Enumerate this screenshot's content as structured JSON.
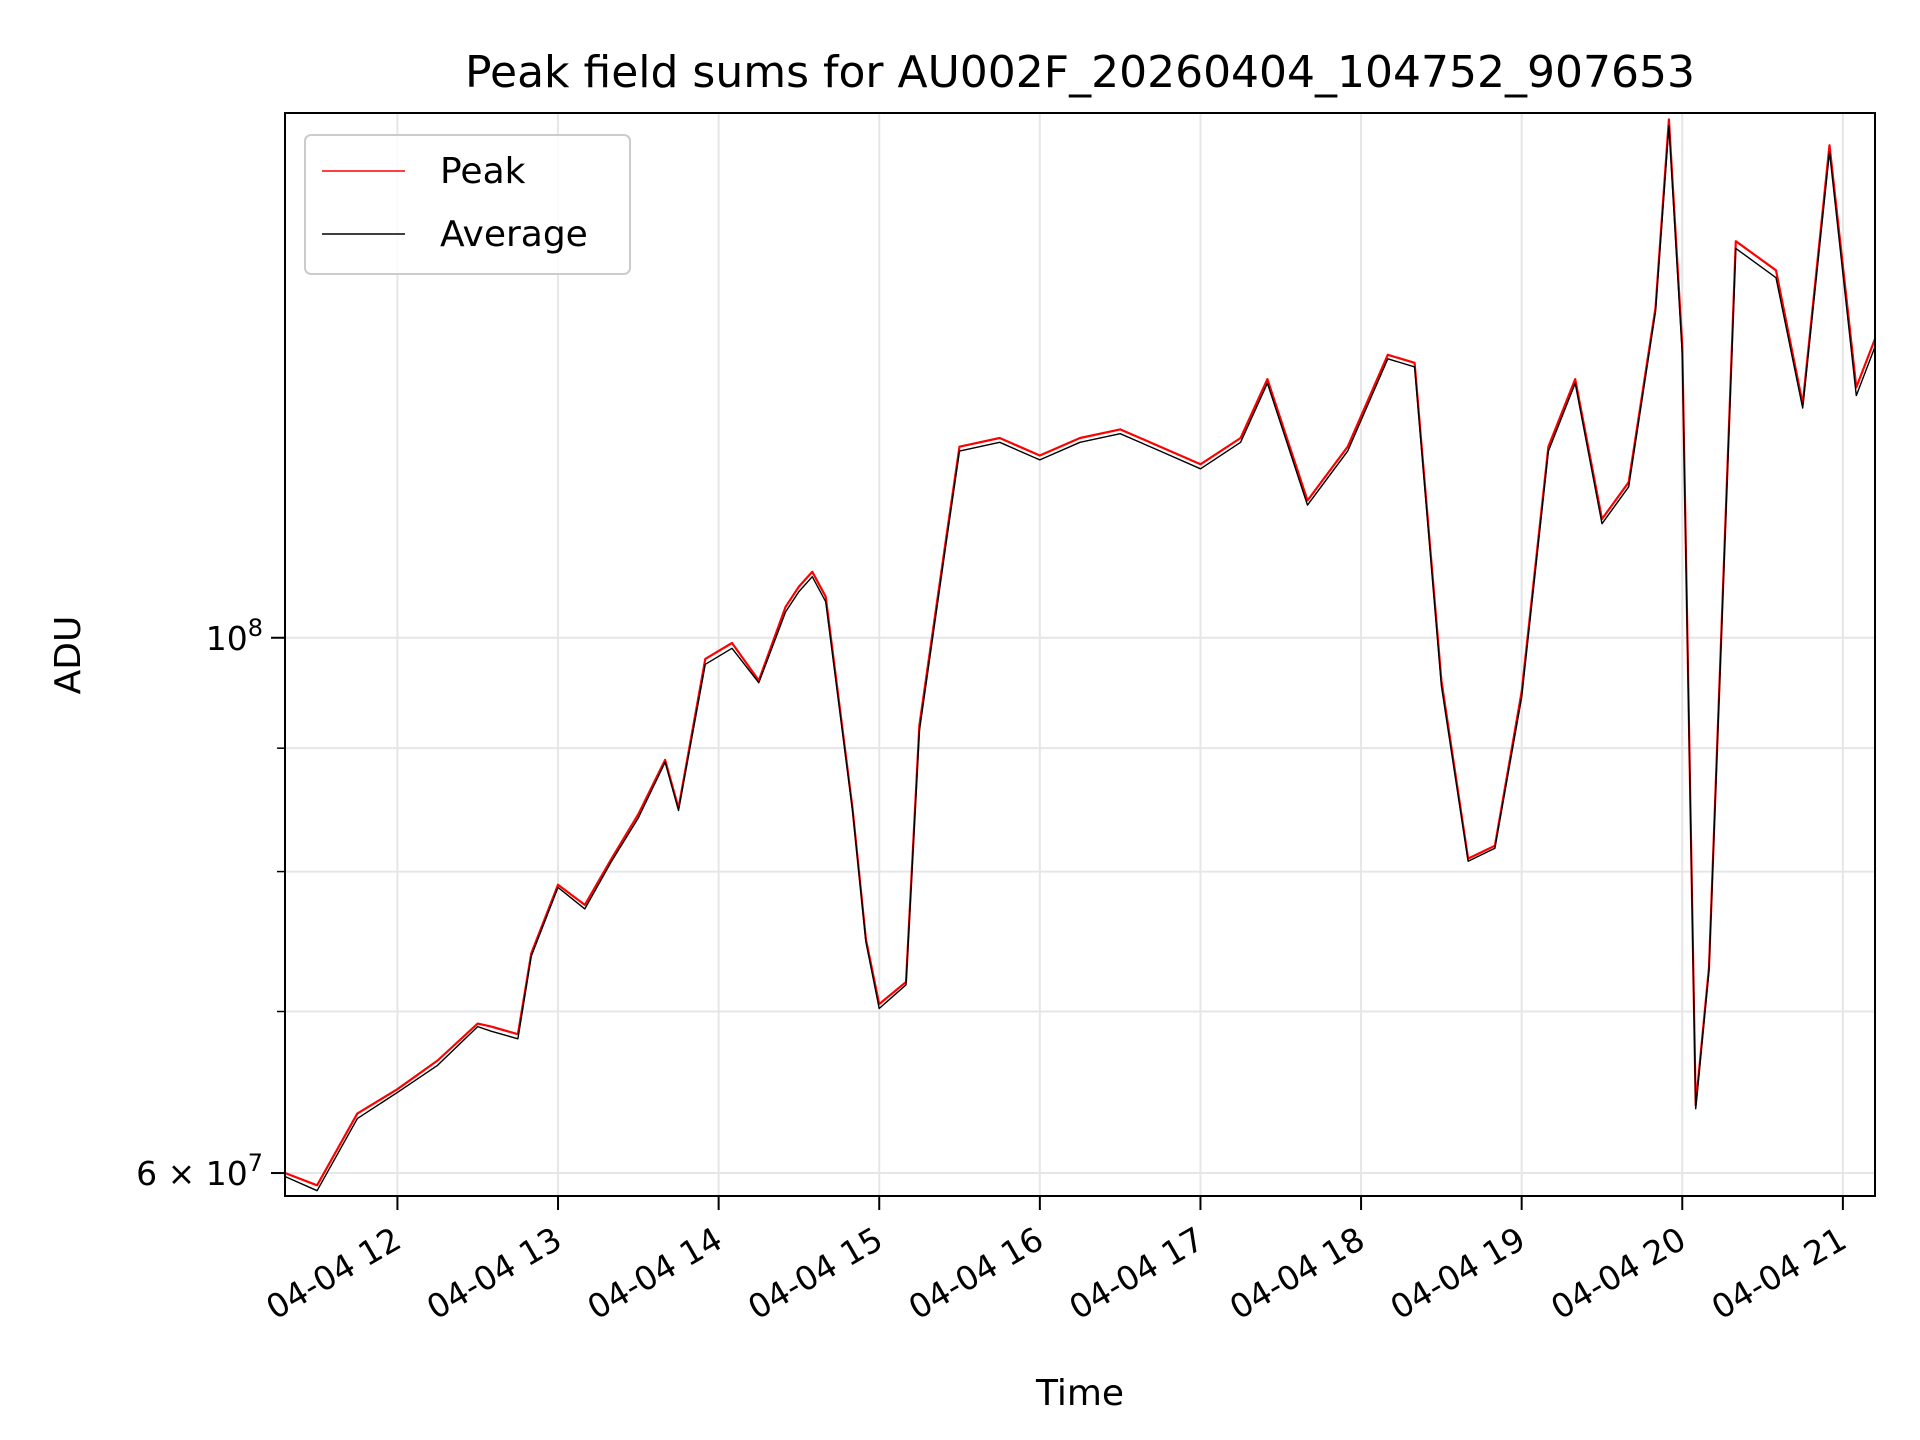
{
  "chart_data": {
    "type": "line",
    "title": "Peak field sums for AU002F_20260404_104752_907653",
    "xlabel": "Time",
    "ylabel": "ADU",
    "yscale": "log",
    "xlim": [
      "2026-04-04 11:18",
      "2026-04-04 21:12"
    ],
    "ylim": [
      58700000,
      165000000
    ],
    "grid": true,
    "legend_position": "top-left",
    "x_ticks": [
      "04-04 12",
      "04-04 13",
      "04-04 14",
      "04-04 15",
      "04-04 16",
      "04-04 17",
      "04-04 18",
      "04-04 19",
      "04-04 20",
      "04-04 21"
    ],
    "y_ticks": [
      {
        "value": 60000000,
        "mantissa": "6",
        "exponent": "7"
      },
      {
        "value": 100000000,
        "mantissa": "",
        "exponent": "8"
      }
    ],
    "y_minor_ticks": [
      70000000,
      80000000,
      90000000
    ],
    "x": [
      "11:18",
      "11:30",
      "11:45",
      "12:00",
      "12:15",
      "12:30",
      "12:35",
      "12:45",
      "12:50",
      "13:00",
      "13:10",
      "13:20",
      "13:30",
      "13:40",
      "13:45",
      "13:55",
      "14:05",
      "14:15",
      "14:25",
      "14:30",
      "14:35",
      "14:40",
      "14:50",
      "14:55",
      "15:00",
      "15:10",
      "15:15",
      "15:25",
      "15:30",
      "15:45",
      "16:00",
      "16:15",
      "16:30",
      "16:45",
      "17:00",
      "17:15",
      "17:25",
      "17:40",
      "17:55",
      "18:10",
      "18:20",
      "18:30",
      "18:40",
      "18:50",
      "19:00",
      "19:10",
      "19:20",
      "19:30",
      "19:40",
      "19:50",
      "19:55",
      "20:00",
      "20:05",
      "20:10",
      "20:20",
      "20:35",
      "20:45",
      "20:55",
      "21:05",
      "21:12"
    ],
    "series": [
      {
        "name": "Peak",
        "color": "#ff0000",
        "values": [
          60000000,
          59300000,
          63500000,
          65000000,
          66800000,
          69200000,
          69000000,
          68500000,
          74000000,
          79000000,
          77500000,
          81000000,
          84500000,
          89000000,
          85000000,
          98000000,
          99500000,
          96000000,
          103000000,
          105000000,
          106500000,
          104000000,
          85000000,
          75000000,
          70500000,
          72000000,
          92000000,
          110000000,
          120000000,
          121000000,
          119000000,
          121000000,
          122000000,
          120000000,
          118000000,
          121000000,
          128000000,
          114000000,
          120000000,
          131000000,
          130000000,
          96000000,
          81000000,
          82000000,
          95000000,
          120000000,
          128000000,
          112000000,
          116000000,
          137000000,
          164000000,
          132000000,
          64000000,
          73000000,
          146000000,
          142000000,
          125000000,
          160000000,
          127000000,
          133000000
        ]
      },
      {
        "name": "Average",
        "color": "#000000",
        "values": [
          59800000,
          59000000,
          63200000,
          64800000,
          66500000,
          69000000,
          68700000,
          68200000,
          73800000,
          78800000,
          77200000,
          80800000,
          84200000,
          88800000,
          84800000,
          97500000,
          99000000,
          95800000,
          102500000,
          104500000,
          106000000,
          103500000,
          84800000,
          74800000,
          70200000,
          71800000,
          91500000,
          109500000,
          119500000,
          120500000,
          118500000,
          120500000,
          121500000,
          119500000,
          117500000,
          120500000,
          127500000,
          113500000,
          119500000,
          130500000,
          129500000,
          95500000,
          80800000,
          81800000,
          94500000,
          119500000,
          127500000,
          111500000,
          115500000,
          136500000,
          163000000,
          131000000,
          63800000,
          72800000,
          145000000,
          141000000,
          124500000,
          159000000,
          126000000,
          132000000
        ]
      }
    ]
  }
}
